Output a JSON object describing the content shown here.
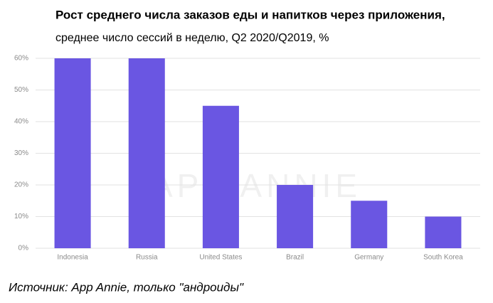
{
  "chart_data": {
    "type": "bar",
    "title": "Рост среднего числа заказов еды и напитков через приложения,",
    "subtitle": "среднее число сессий в неделю, Q2 2020/Q2019, %",
    "source": "Источник: App Annie, только \"андроиды\"",
    "watermark": "APP ANNIE",
    "categories": [
      "Indonesia",
      "Russia",
      "United States",
      "Brazil",
      "Germany",
      "South Korea"
    ],
    "values": [
      60,
      60,
      45,
      20,
      15,
      10
    ],
    "color": "#6a56e2",
    "ylim": [
      0,
      60
    ],
    "yticks": [
      {
        "value": 0,
        "label": "0%"
      },
      {
        "value": 10,
        "label": "10%"
      },
      {
        "value": 20,
        "label": "20%"
      },
      {
        "value": 30,
        "label": "30%"
      },
      {
        "value": 40,
        "label": "40%"
      },
      {
        "value": 50,
        "label": "50%"
      },
      {
        "value": 60,
        "label": "60%"
      }
    ],
    "grid": true
  }
}
